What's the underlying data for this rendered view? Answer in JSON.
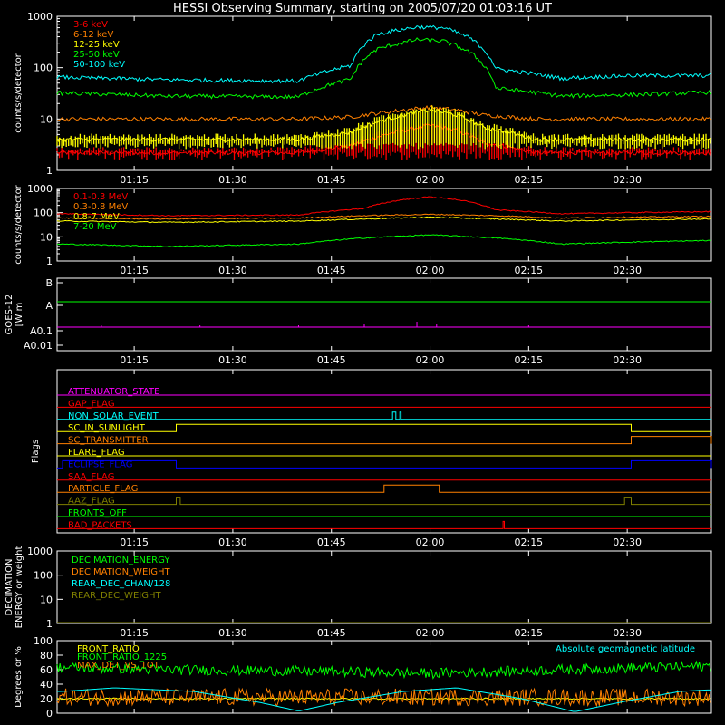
{
  "title": "HESSI Observing Summary, starting on 2005/07/20 01:03:16 UT",
  "time_axis": {
    "start": "01:03:16",
    "end": "02:42:00",
    "tick_labels": [
      "01:15",
      "01:30",
      "01:45",
      "02:00",
      "02:15",
      "02:30"
    ],
    "tick_minutes": [
      75,
      90,
      105,
      120,
      135,
      150
    ]
  },
  "chart_data": [
    {
      "type": "line",
      "title": "",
      "ylabel": "counts/s/detector",
      "yscale": "log",
      "ylim": [
        1,
        1000
      ],
      "y_ticks": [
        "1",
        "10",
        "100",
        "1000"
      ],
      "legend_placement": "top-left",
      "series": [
        {
          "name": "3-6 keV",
          "color": "#ff0000",
          "points": [
            [
              64,
              2.2
            ],
            [
              80,
              2.2
            ],
            [
              100,
              2.2
            ],
            [
              108,
              3
            ],
            [
              116,
              6
            ],
            [
              120,
              7.5
            ],
            [
              124,
              6
            ],
            [
              128,
              3.5
            ],
            [
              136,
              2.2
            ],
            [
              162,
              2.2
            ]
          ]
        },
        {
          "name": "6-12 keV",
          "color": "#ff8000",
          "points": [
            [
              64,
              10
            ],
            [
              80,
              10
            ],
            [
              100,
              10
            ],
            [
              108,
              11
            ],
            [
              116,
              15
            ],
            [
              120,
              17
            ],
            [
              124,
              15
            ],
            [
              128,
              12
            ],
            [
              136,
              10
            ],
            [
              162,
              10
            ]
          ]
        },
        {
          "name": "12-25 keV",
          "color": "#ffff00",
          "points": [
            [
              64,
              4
            ],
            [
              80,
              4
            ],
            [
              100,
              4
            ],
            [
              108,
              5.5
            ],
            [
              116,
              12
            ],
            [
              120,
              15
            ],
            [
              124,
              12
            ],
            [
              128,
              7
            ],
            [
              136,
              4
            ],
            [
              162,
              4
            ]
          ]
        },
        {
          "name": "25-50 keV",
          "color": "#00ff00",
          "points": [
            [
              64,
              32
            ],
            [
              80,
              28
            ],
            [
              100,
              27
            ],
            [
              108,
              60
            ],
            [
              112,
              230
            ],
            [
              118,
              350
            ],
            [
              122,
              330
            ],
            [
              126,
              200
            ],
            [
              130,
              40
            ],
            [
              140,
              28
            ],
            [
              152,
              30
            ],
            [
              162,
              33
            ]
          ]
        },
        {
          "name": "50-100 keV",
          "color": "#00ffff",
          "points": [
            [
              64,
              65
            ],
            [
              80,
              58
            ],
            [
              100,
              55
            ],
            [
              108,
              110
            ],
            [
              112,
              450
            ],
            [
              118,
              620
            ],
            [
              122,
              600
            ],
            [
              126,
              380
            ],
            [
              130,
              95
            ],
            [
              140,
              62
            ],
            [
              150,
              70
            ],
            [
              162,
              70
            ]
          ]
        }
      ]
    },
    {
      "type": "line",
      "title": "",
      "ylabel": "counts/s/detector",
      "yscale": "log",
      "ylim": [
        1,
        1000
      ],
      "y_ticks": [
        "1",
        "10",
        "100",
        "1000"
      ],
      "legend_placement": "top-left",
      "series": [
        {
          "name": "0.1-0.3 MeV",
          "color": "#ff0000",
          "points": [
            [
              64,
              90
            ],
            [
              80,
              75
            ],
            [
              100,
              80
            ],
            [
              110,
              150
            ],
            [
              116,
              350
            ],
            [
              120,
              450
            ],
            [
              124,
              350
            ],
            [
              130,
              130
            ],
            [
              140,
              90
            ],
            [
              150,
              100
            ],
            [
              162,
              110
            ]
          ]
        },
        {
          "name": "0.3-0.8 MeV",
          "color": "#ff8000",
          "points": [
            [
              64,
              60
            ],
            [
              80,
              55
            ],
            [
              100,
              60
            ],
            [
              110,
              75
            ],
            [
              120,
              85
            ],
            [
              130,
              75
            ],
            [
              140,
              60
            ],
            [
              150,
              65
            ],
            [
              162,
              70
            ]
          ]
        },
        {
          "name": "0.8-7 MeV",
          "color": "#ffff00",
          "points": [
            [
              64,
              45
            ],
            [
              80,
              40
            ],
            [
              100,
              45
            ],
            [
              110,
              55
            ],
            [
              120,
              65
            ],
            [
              130,
              55
            ],
            [
              140,
              45
            ],
            [
              150,
              50
            ],
            [
              162,
              55
            ]
          ]
        },
        {
          "name": "7-20 MeV",
          "color": "#00ff00",
          "points": [
            [
              64,
              5
            ],
            [
              80,
              4
            ],
            [
              100,
              5
            ],
            [
              110,
              9
            ],
            [
              120,
              12
            ],
            [
              130,
              9
            ],
            [
              140,
              5
            ],
            [
              150,
              6
            ],
            [
              162,
              7
            ]
          ]
        }
      ]
    },
    {
      "type": "line",
      "title": "",
      "ylabel": "GOES-12 [W m-2]",
      "ylabel_main": "GOES-12",
      "ylabel_units": "[W m",
      "y_ticks": [
        "A0.01",
        "A0.1",
        "A",
        "B"
      ],
      "series": [
        {
          "name": "",
          "color": "#00ff00",
          "level": "A"
        },
        {
          "name": "",
          "color": "#ff00ff",
          "level": "A0.1"
        }
      ]
    },
    {
      "type": "line",
      "title": "",
      "ylabel": "Flags",
      "flags": [
        {
          "name": "ATTENUATOR_STATE",
          "color": "#ff00ff",
          "on": []
        },
        {
          "name": "GAP_FLAG",
          "color": "#ff0000",
          "on": []
        },
        {
          "name": "NON_SOLAR_EVENT",
          "color": "#00ffff",
          "on": [
            [
              114.3,
              114.8
            ],
            [
              115.4,
              115.6
            ]
          ]
        },
        {
          "name": "SC_IN_SUNLIGHT",
          "color": "#ffff00",
          "on": [
            [
              81.4,
              150.6
            ]
          ]
        },
        {
          "name": "SC_TRANSMITTER",
          "color": "#ff8000",
          "on": [
            [
              150.6,
              162.8
            ]
          ]
        },
        {
          "name": "FLARE_FLAG",
          "color": "#ffff00",
          "on": []
        },
        {
          "name": "ECLIPSE_FLAG",
          "color": "#0000ff",
          "on": [
            [
              64.1,
              81.4
            ],
            [
              150.6,
              162.8
            ]
          ]
        },
        {
          "name": "SAA_FLAG",
          "color": "#ff0000",
          "on": []
        },
        {
          "name": "PARTICLE_FLAG",
          "color": "#ff8000",
          "on": [
            [
              113.0,
              121.4
            ]
          ]
        },
        {
          "name": "AAZ_FLAG",
          "color": "#808000",
          "on": [
            [
              81.4,
              82.0
            ],
            [
              149.6,
              150.6
            ]
          ]
        },
        {
          "name": "FRONTS_OFF",
          "color": "#00ff00",
          "on": []
        },
        {
          "name": "BAD_PACKETS",
          "color": "#ff0000",
          "on": [
            [
              131.1,
              131.3
            ]
          ]
        }
      ]
    },
    {
      "type": "line",
      "title": "",
      "ylabel": "DECIMATION ENERGY or weight",
      "ylabel_line1": "DECIMATION",
      "ylabel_line2": "ENERGY or weight",
      "yscale": "log",
      "ylim": [
        1,
        1000
      ],
      "y_ticks": [
        "1",
        "10",
        "100",
        "1000"
      ],
      "legend_placement": "top-left",
      "series": [
        {
          "name": "DECIMATION_ENERGY",
          "color": "#00ff00",
          "points": []
        },
        {
          "name": "DECIMATION_WEIGHT",
          "color": "#ff8000",
          "points": []
        },
        {
          "name": "REAR_DEC_CHAN/128",
          "color": "#00ffff",
          "points": []
        },
        {
          "name": "REAR_DEC_WEIGHT",
          "color": "#808000",
          "points": [
            [
              64,
              1
            ],
            [
              162,
              1
            ]
          ]
        }
      ]
    },
    {
      "type": "line",
      "title": "",
      "ylabel": "Degrees or %",
      "ylim": [
        0,
        100
      ],
      "y_ticks": [
        "0",
        "20",
        "40",
        "60",
        "80",
        "100"
      ],
      "legend_placement": "top-left",
      "annotation": "Absolute geomagnetic latitude",
      "annotation_color": "#00ffff",
      "series": [
        {
          "name": "FRONT_RATIO",
          "color": "#ffff00",
          "points": [
            [
              64,
              20
            ],
            [
              162,
              20
            ]
          ]
        },
        {
          "name": "FRONT_RATIO_1225",
          "color": "#00ff00",
          "points": [
            [
              64,
              63
            ],
            [
              80,
              60
            ],
            [
              100,
              58
            ],
            [
              120,
              55
            ],
            [
              140,
              60
            ],
            [
              162,
              65
            ]
          ]
        },
        {
          "name": "MAX_DET_VS_TOT",
          "color": "#ff8000",
          "points": [
            [
              64,
              22
            ],
            [
              162,
              22
            ]
          ]
        },
        {
          "name": "Absolute geomagnetic latitude",
          "color": "#00ffff",
          "points": [
            [
              64,
              30
            ],
            [
              72,
              35
            ],
            [
              84,
              30
            ],
            [
              94,
              15
            ],
            [
              100,
              3
            ],
            [
              106,
              15
            ],
            [
              116,
              30
            ],
            [
              124,
              35
            ],
            [
              134,
              20
            ],
            [
              142,
              2
            ],
            [
              150,
              17
            ],
            [
              158,
              30
            ],
            [
              162,
              32
            ]
          ]
        }
      ]
    }
  ]
}
